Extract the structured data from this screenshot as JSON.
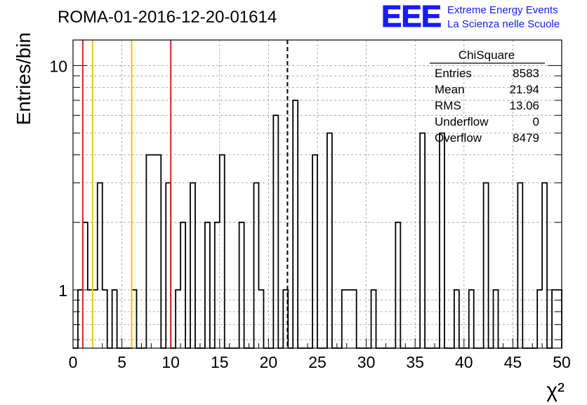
{
  "header": {
    "run_title": "ROMA-01-2016-12-20-01614",
    "logo_letters": "EEE",
    "logo_line1": "Extreme Energy Events",
    "logo_line2": "La Scienza nelle Scuole"
  },
  "stats_box": {
    "title": "ChiSquare",
    "rows": [
      {
        "label": "Entries",
        "value": "8583"
      },
      {
        "label": "Mean",
        "value": "21.94"
      },
      {
        "label": "RMS",
        "value": "13.06"
      },
      {
        "label": "Underflow",
        "value": "0"
      },
      {
        "label": "Overflow",
        "value": "8479"
      }
    ]
  },
  "colors": {
    "histogram": "#000000",
    "grid": "#9a9a9a",
    "red_line": "#e8201c",
    "yellow_line": "#f2c21a",
    "logo": "#1a1aff",
    "logo_text": "#1a1aff"
  },
  "chart_data": {
    "type": "histogram",
    "title": "ROMA-01-2016-12-20-01614",
    "xlabel": "χ²",
    "ylabel": "Entries/bin",
    "xlim": [
      0,
      50
    ],
    "ylim": [
      0.55,
      13
    ],
    "yscale": "log",
    "grid": true,
    "bin_width": 0.5,
    "x_ticks": [
      "0",
      "5",
      "10",
      "15",
      "20",
      "25",
      "30",
      "35",
      "40",
      "45",
      "50"
    ],
    "y_ticks": [
      "1",
      "10"
    ],
    "bin_counts": [
      0,
      1,
      2,
      1,
      1,
      3,
      1,
      0,
      1,
      0,
      0,
      0,
      1,
      0,
      0,
      4,
      4,
      4,
      0,
      3,
      0,
      1,
      2,
      0,
      3,
      0,
      0,
      2,
      0,
      2,
      4,
      0,
      0,
      0,
      2,
      0,
      0,
      3,
      1,
      0,
      0,
      6,
      0,
      1,
      0,
      7,
      0,
      0,
      0,
      4,
      0,
      0,
      5,
      0,
      0,
      1,
      1,
      1,
      0,
      0,
      0,
      1,
      0,
      0,
      0,
      0,
      2,
      0,
      0,
      0,
      0,
      5,
      0,
      0,
      0,
      5,
      0,
      0,
      1,
      0,
      0,
      1,
      0,
      0,
      3,
      0,
      1,
      0,
      0,
      0,
      0,
      3,
      0,
      0,
      0,
      1,
      3,
      0,
      1,
      1
    ],
    "vertical_lines": [
      {
        "x": 1.0,
        "color": "#e8201c",
        "style": "solid"
      },
      {
        "x": 2.0,
        "color": "#f2c21a",
        "style": "solid"
      },
      {
        "x": 6.0,
        "color": "#f2c21a",
        "style": "solid"
      },
      {
        "x": 10.0,
        "color": "#e8201c",
        "style": "solid"
      },
      {
        "x": 21.94,
        "color": "#000000",
        "style": "dashed"
      }
    ]
  }
}
